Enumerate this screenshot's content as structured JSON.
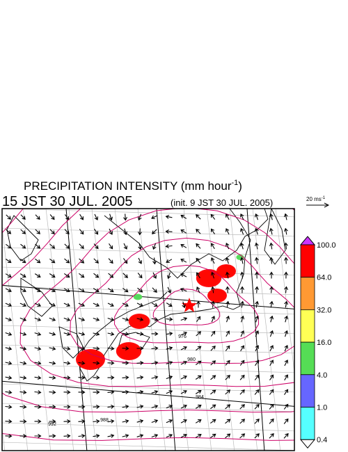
{
  "header": {
    "title": [
      "PRECIPITATION INTENSITY (mm hour",
      "-1",
      ")"
    ],
    "time": "15 JST 30 JUL. 2005",
    "init": "(init. 9 JST 30 JUL. 2005)"
  },
  "scale": {
    "label": [
      "20 ms",
      "-1"
    ]
  },
  "colorbar": {
    "labels": [
      "100.0",
      "64.0",
      "32.0",
      "16.0",
      "4.0",
      "1.0",
      "0.4"
    ],
    "colors": [
      "#ff0000",
      "#ff9933",
      "#ffff55",
      "#55dd55",
      "#6666ff",
      "#55ffff"
    ],
    "over_color": "#cc33ff",
    "under_color": "#ffffff"
  },
  "contours": {
    "labels": [
      "976",
      "980",
      "984",
      "988",
      "992"
    ],
    "color": "#cc0066"
  }
}
